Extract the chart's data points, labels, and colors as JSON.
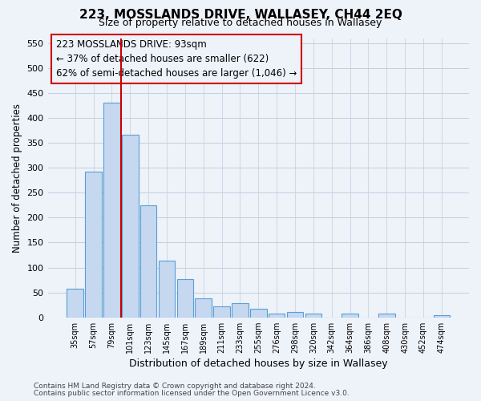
{
  "title": "223, MOSSLANDS DRIVE, WALLASEY, CH44 2EQ",
  "subtitle": "Size of property relative to detached houses in Wallasey",
  "xlabel": "Distribution of detached houses by size in Wallasey",
  "ylabel": "Number of detached properties",
  "bar_labels": [
    "35sqm",
    "57sqm",
    "79sqm",
    "101sqm",
    "123sqm",
    "145sqm",
    "167sqm",
    "189sqm",
    "211sqm",
    "233sqm",
    "255sqm",
    "276sqm",
    "298sqm",
    "320sqm",
    "342sqm",
    "364sqm",
    "386sqm",
    "408sqm",
    "430sqm",
    "452sqm",
    "474sqm"
  ],
  "bar_values": [
    57,
    293,
    430,
    367,
    225,
    113,
    76,
    38,
    22,
    29,
    18,
    8,
    10,
    8,
    0,
    8,
    0,
    7,
    0,
    0,
    5
  ],
  "bar_color": "#c5d8f0",
  "bar_edge_color": "#5a9fd4",
  "grid_color": "#c0cfe0",
  "bg_color": "#eef2f9",
  "vline_color": "#cc0000",
  "annotation_text": "223 MOSSLANDS DRIVE: 93sqm\n← 37% of detached houses are smaller (622)\n62% of semi-detached houses are larger (1,046) →",
  "annotation_box_color": "#cc0000",
  "ylim": [
    0,
    560
  ],
  "yticks": [
    0,
    50,
    100,
    150,
    200,
    250,
    300,
    350,
    400,
    450,
    500,
    550
  ],
  "footer_line1": "Contains HM Land Registry data © Crown copyright and database right 2024.",
  "footer_line2": "Contains public sector information licensed under the Open Government Licence v3.0."
}
